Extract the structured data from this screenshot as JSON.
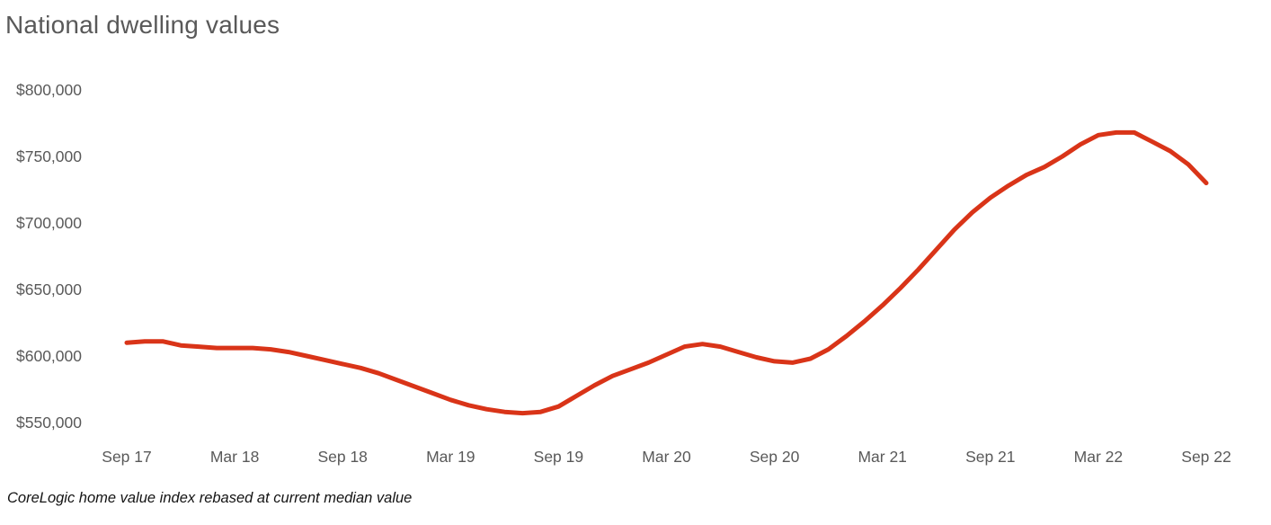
{
  "chart": {
    "title": "National dwelling values",
    "footnote": "CoreLogic home value index rebased at current median value",
    "line_color": "#d93418",
    "text_color": "#595959"
  },
  "chart_data": {
    "type": "line",
    "title": "National dwelling values",
    "series_name": "National dwelling value",
    "frequency": "monthly",
    "x_start": "Sep 17",
    "x_end": "Sep 22",
    "x_tick_labels": [
      "Sep 17",
      "Mar 18",
      "Sep 18",
      "Mar 19",
      "Sep 19",
      "Mar 20",
      "Sep 20",
      "Mar 21",
      "Sep 21",
      "Mar 22",
      "Sep 22"
    ],
    "y_tick_labels": [
      "$800,000",
      "$750,000",
      "$700,000",
      "$650,000",
      "$600,000",
      "$550,000"
    ],
    "ylim": [
      550000,
      800000
    ],
    "grid": false,
    "legend": false,
    "values_unit": "AUD",
    "values": [
      610000,
      611000,
      611000,
      608000,
      607000,
      606000,
      606000,
      606000,
      605000,
      603000,
      600000,
      597000,
      594000,
      591000,
      587000,
      582000,
      577000,
      572000,
      567000,
      563000,
      560000,
      558000,
      557000,
      558000,
      562000,
      570000,
      578000,
      585000,
      590000,
      595000,
      601000,
      607000,
      609000,
      607000,
      603000,
      599000,
      596000,
      595000,
      598000,
      605000,
      615000,
      626000,
      638000,
      651000,
      665000,
      680000,
      695000,
      708000,
      719000,
      728000,
      736000,
      742000,
      750000,
      759000,
      766000,
      768000,
      768000,
      761000,
      754000,
      744000,
      730000
    ]
  },
  "layout": {
    "y_axis_top_center": 100,
    "y_axis_step": 74,
    "x_axis_first_center": 141,
    "x_axis_last_center": 1342
  }
}
